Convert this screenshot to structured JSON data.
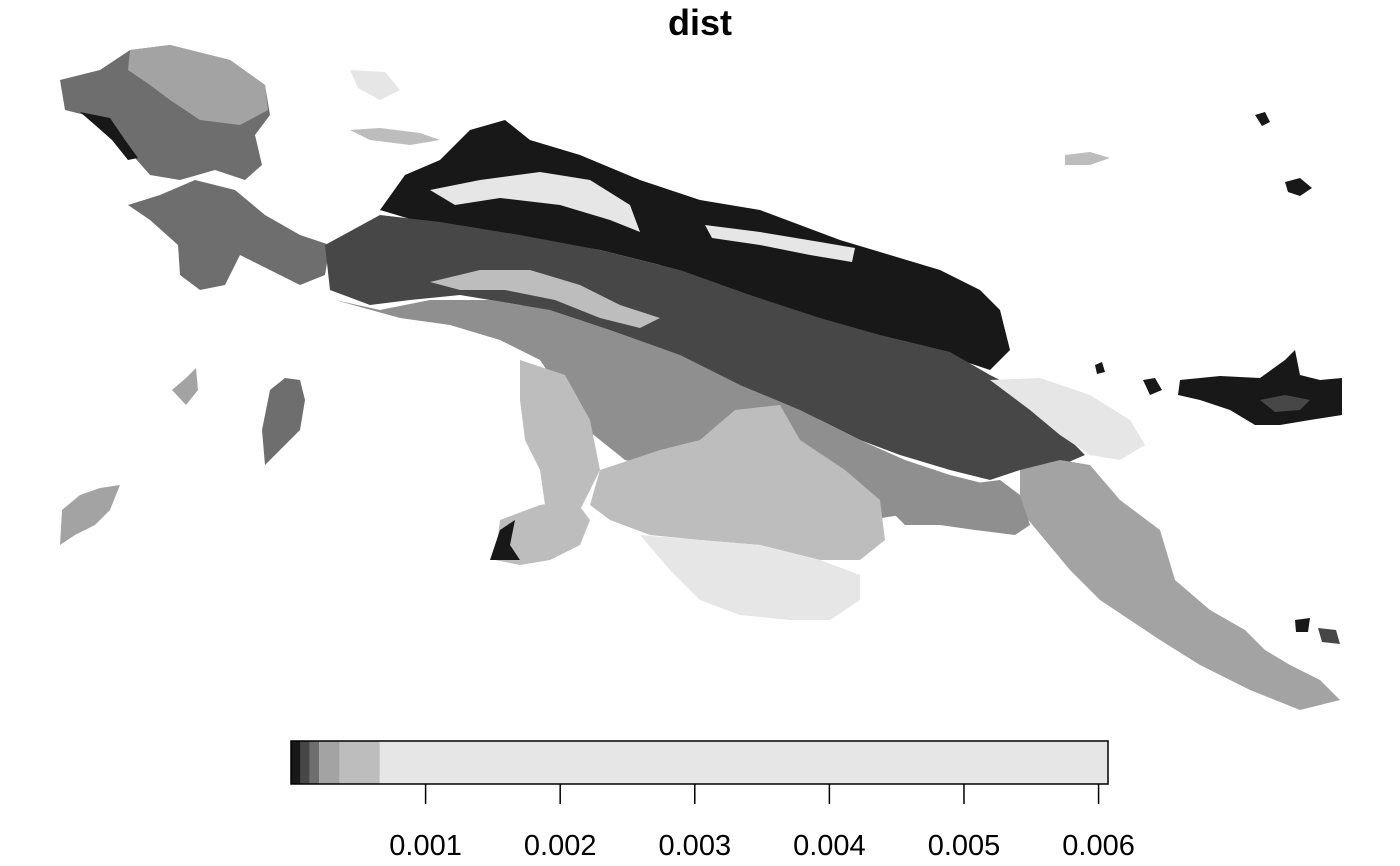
{
  "title": "dist",
  "legend": {
    "ticks": [
      "0.001",
      "0.002",
      "0.003",
      "0.004",
      "0.005",
      "0.006"
    ],
    "tick_values": [
      0.001,
      0.002,
      0.003,
      0.004,
      0.005,
      0.006
    ],
    "range": [
      0.0,
      0.00607
    ],
    "bands": [
      {
        "to": 7e-05,
        "color": "#181818"
      },
      {
        "to": 0.00014,
        "color": "#474747"
      },
      {
        "to": 0.00021,
        "color": "#6e6e6e"
      },
      {
        "to": 0.00036,
        "color": "#a3a3a3"
      },
      {
        "to": 0.00066,
        "color": "#bdbdbd"
      },
      {
        "to": 0.00607,
        "color": "#e6e6e6"
      }
    ]
  },
  "palette": {
    "black": "#181818",
    "dark": "#474747",
    "mid_dark": "#6e6e6e",
    "mid": "#8f8f8f",
    "mid_light": "#a3a3a3",
    "light": "#bdbdbd",
    "lightest": "#e6e6e6"
  }
}
